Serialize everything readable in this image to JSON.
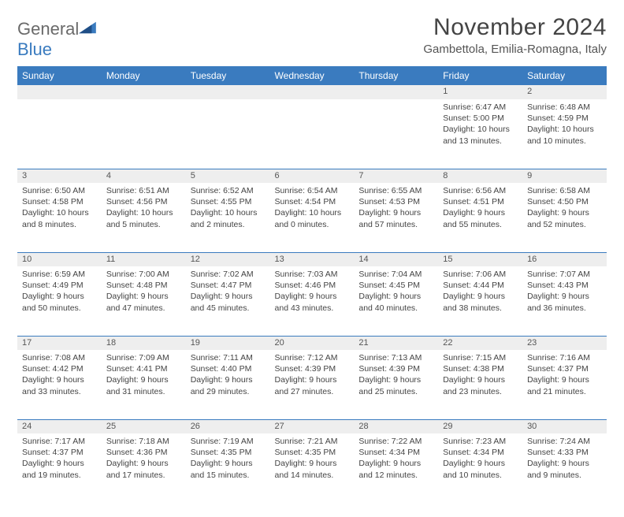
{
  "logo": {
    "word1": "General",
    "word2": "Blue"
  },
  "title": "November 2024",
  "location": "Gambettola, Emilia-Romagna, Italy",
  "colors": {
    "header_bg": "#3a7bbf",
    "header_text": "#ffffff",
    "daynum_bg": "#eeeeee",
    "row_border": "#3a7bbf",
    "body_text": "#444444",
    "page_bg": "#ffffff",
    "logo_gray": "#6a6a6a",
    "logo_blue": "#3a7bbf"
  },
  "weekdays": [
    "Sunday",
    "Monday",
    "Tuesday",
    "Wednesday",
    "Thursday",
    "Friday",
    "Saturday"
  ],
  "weeks": [
    [
      {
        "n": "",
        "sr": "",
        "ss": "",
        "d1": "",
        "d2": ""
      },
      {
        "n": "",
        "sr": "",
        "ss": "",
        "d1": "",
        "d2": ""
      },
      {
        "n": "",
        "sr": "",
        "ss": "",
        "d1": "",
        "d2": ""
      },
      {
        "n": "",
        "sr": "",
        "ss": "",
        "d1": "",
        "d2": ""
      },
      {
        "n": "",
        "sr": "",
        "ss": "",
        "d1": "",
        "d2": ""
      },
      {
        "n": "1",
        "sr": "Sunrise: 6:47 AM",
        "ss": "Sunset: 5:00 PM",
        "d1": "Daylight: 10 hours",
        "d2": "and 13 minutes."
      },
      {
        "n": "2",
        "sr": "Sunrise: 6:48 AM",
        "ss": "Sunset: 4:59 PM",
        "d1": "Daylight: 10 hours",
        "d2": "and 10 minutes."
      }
    ],
    [
      {
        "n": "3",
        "sr": "Sunrise: 6:50 AM",
        "ss": "Sunset: 4:58 PM",
        "d1": "Daylight: 10 hours",
        "d2": "and 8 minutes."
      },
      {
        "n": "4",
        "sr": "Sunrise: 6:51 AM",
        "ss": "Sunset: 4:56 PM",
        "d1": "Daylight: 10 hours",
        "d2": "and 5 minutes."
      },
      {
        "n": "5",
        "sr": "Sunrise: 6:52 AM",
        "ss": "Sunset: 4:55 PM",
        "d1": "Daylight: 10 hours",
        "d2": "and 2 minutes."
      },
      {
        "n": "6",
        "sr": "Sunrise: 6:54 AM",
        "ss": "Sunset: 4:54 PM",
        "d1": "Daylight: 10 hours",
        "d2": "and 0 minutes."
      },
      {
        "n": "7",
        "sr": "Sunrise: 6:55 AM",
        "ss": "Sunset: 4:53 PM",
        "d1": "Daylight: 9 hours",
        "d2": "and 57 minutes."
      },
      {
        "n": "8",
        "sr": "Sunrise: 6:56 AM",
        "ss": "Sunset: 4:51 PM",
        "d1": "Daylight: 9 hours",
        "d2": "and 55 minutes."
      },
      {
        "n": "9",
        "sr": "Sunrise: 6:58 AM",
        "ss": "Sunset: 4:50 PM",
        "d1": "Daylight: 9 hours",
        "d2": "and 52 minutes."
      }
    ],
    [
      {
        "n": "10",
        "sr": "Sunrise: 6:59 AM",
        "ss": "Sunset: 4:49 PM",
        "d1": "Daylight: 9 hours",
        "d2": "and 50 minutes."
      },
      {
        "n": "11",
        "sr": "Sunrise: 7:00 AM",
        "ss": "Sunset: 4:48 PM",
        "d1": "Daylight: 9 hours",
        "d2": "and 47 minutes."
      },
      {
        "n": "12",
        "sr": "Sunrise: 7:02 AM",
        "ss": "Sunset: 4:47 PM",
        "d1": "Daylight: 9 hours",
        "d2": "and 45 minutes."
      },
      {
        "n": "13",
        "sr": "Sunrise: 7:03 AM",
        "ss": "Sunset: 4:46 PM",
        "d1": "Daylight: 9 hours",
        "d2": "and 43 minutes."
      },
      {
        "n": "14",
        "sr": "Sunrise: 7:04 AM",
        "ss": "Sunset: 4:45 PM",
        "d1": "Daylight: 9 hours",
        "d2": "and 40 minutes."
      },
      {
        "n": "15",
        "sr": "Sunrise: 7:06 AM",
        "ss": "Sunset: 4:44 PM",
        "d1": "Daylight: 9 hours",
        "d2": "and 38 minutes."
      },
      {
        "n": "16",
        "sr": "Sunrise: 7:07 AM",
        "ss": "Sunset: 4:43 PM",
        "d1": "Daylight: 9 hours",
        "d2": "and 36 minutes."
      }
    ],
    [
      {
        "n": "17",
        "sr": "Sunrise: 7:08 AM",
        "ss": "Sunset: 4:42 PM",
        "d1": "Daylight: 9 hours",
        "d2": "and 33 minutes."
      },
      {
        "n": "18",
        "sr": "Sunrise: 7:09 AM",
        "ss": "Sunset: 4:41 PM",
        "d1": "Daylight: 9 hours",
        "d2": "and 31 minutes."
      },
      {
        "n": "19",
        "sr": "Sunrise: 7:11 AM",
        "ss": "Sunset: 4:40 PM",
        "d1": "Daylight: 9 hours",
        "d2": "and 29 minutes."
      },
      {
        "n": "20",
        "sr": "Sunrise: 7:12 AM",
        "ss": "Sunset: 4:39 PM",
        "d1": "Daylight: 9 hours",
        "d2": "and 27 minutes."
      },
      {
        "n": "21",
        "sr": "Sunrise: 7:13 AM",
        "ss": "Sunset: 4:39 PM",
        "d1": "Daylight: 9 hours",
        "d2": "and 25 minutes."
      },
      {
        "n": "22",
        "sr": "Sunrise: 7:15 AM",
        "ss": "Sunset: 4:38 PM",
        "d1": "Daylight: 9 hours",
        "d2": "and 23 minutes."
      },
      {
        "n": "23",
        "sr": "Sunrise: 7:16 AM",
        "ss": "Sunset: 4:37 PM",
        "d1": "Daylight: 9 hours",
        "d2": "and 21 minutes."
      }
    ],
    [
      {
        "n": "24",
        "sr": "Sunrise: 7:17 AM",
        "ss": "Sunset: 4:37 PM",
        "d1": "Daylight: 9 hours",
        "d2": "and 19 minutes."
      },
      {
        "n": "25",
        "sr": "Sunrise: 7:18 AM",
        "ss": "Sunset: 4:36 PM",
        "d1": "Daylight: 9 hours",
        "d2": "and 17 minutes."
      },
      {
        "n": "26",
        "sr": "Sunrise: 7:19 AM",
        "ss": "Sunset: 4:35 PM",
        "d1": "Daylight: 9 hours",
        "d2": "and 15 minutes."
      },
      {
        "n": "27",
        "sr": "Sunrise: 7:21 AM",
        "ss": "Sunset: 4:35 PM",
        "d1": "Daylight: 9 hours",
        "d2": "and 14 minutes."
      },
      {
        "n": "28",
        "sr": "Sunrise: 7:22 AM",
        "ss": "Sunset: 4:34 PM",
        "d1": "Daylight: 9 hours",
        "d2": "and 12 minutes."
      },
      {
        "n": "29",
        "sr": "Sunrise: 7:23 AM",
        "ss": "Sunset: 4:34 PM",
        "d1": "Daylight: 9 hours",
        "d2": "and 10 minutes."
      },
      {
        "n": "30",
        "sr": "Sunrise: 7:24 AM",
        "ss": "Sunset: 4:33 PM",
        "d1": "Daylight: 9 hours",
        "d2": "and 9 minutes."
      }
    ]
  ]
}
